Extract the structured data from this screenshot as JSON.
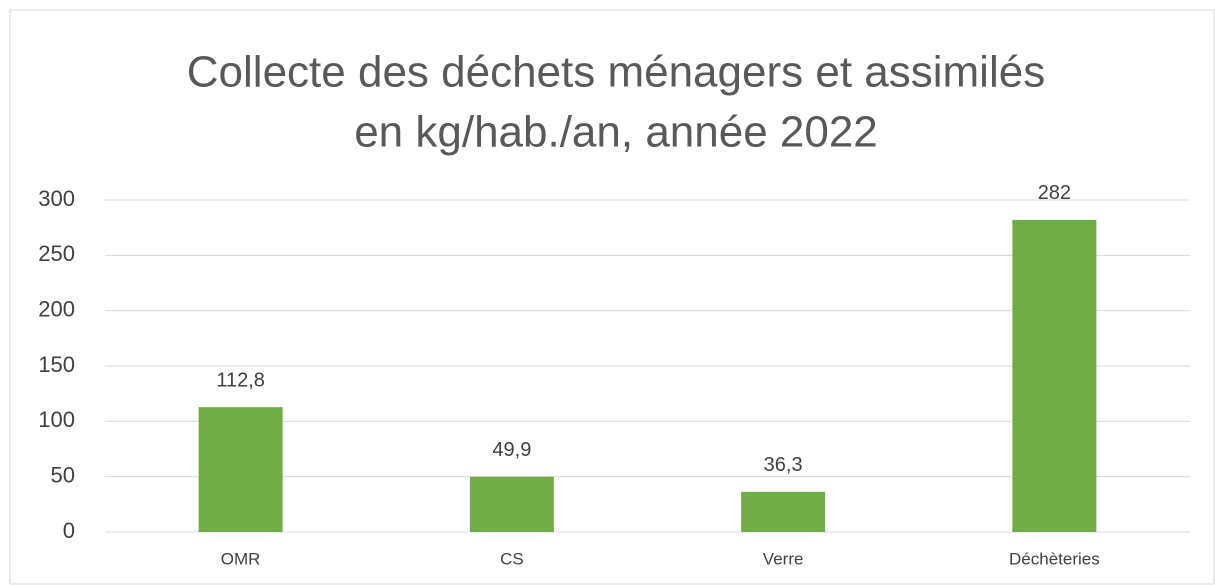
{
  "chart_data": {
    "type": "bar",
    "title": [
      "Collecte des déchets ménagers et assimilés",
      "en kg/hab./an, année 2022"
    ],
    "categories": [
      "OMR",
      "CS",
      "Verre",
      "Déchèteries"
    ],
    "values": [
      112.8,
      49.9,
      36.3,
      282
    ],
    "value_labels": [
      "112,8",
      "49,9",
      "36,3",
      "282"
    ],
    "color": "#70ad47",
    "ylim": [
      0,
      300
    ],
    "yticks": [
      0,
      50,
      100,
      150,
      200,
      250,
      300
    ],
    "grid": true
  }
}
